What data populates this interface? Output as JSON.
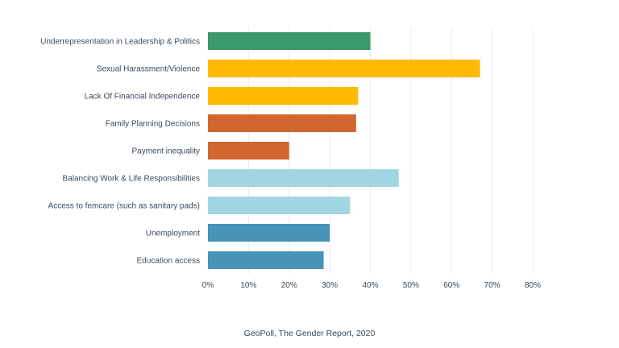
{
  "chart_data": {
    "type": "bar",
    "orientation": "horizontal",
    "title": "",
    "xlabel": "",
    "ylabel": "",
    "categories": [
      "Underrepresentation in Leadership & Politics",
      "Sexual Harassment/Violence",
      "Lack Of Financial Independence",
      "Family Planning Decisions",
      "Payment inequality",
      "Balancing Work & Life Responsibilities ",
      "Access to femcare (such as sanitary pads)",
      "Unemployment",
      "Education access"
    ],
    "values": [
      40,
      67,
      37,
      36.5,
      20,
      47,
      35,
      30,
      28.5
    ],
    "value_unit": "percent",
    "colors": [
      "#3a9a69",
      "#ffb900",
      "#ffb900",
      "#d26631",
      "#d26631",
      "#a2d6e3",
      "#a2d6e3",
      "#4794b8",
      "#4794b8"
    ],
    "xlim": [
      0,
      80
    ],
    "xticks": [
      0,
      10,
      20,
      30,
      40,
      50,
      60,
      70,
      80
    ],
    "xtick_labels": [
      "0%",
      "10%",
      "20%",
      "30%",
      "40%",
      "50%",
      "60%",
      "70%",
      "80%"
    ],
    "grid": "vertical",
    "legend": "none"
  },
  "source": "GeoPoll, The Gender Report, 2020"
}
